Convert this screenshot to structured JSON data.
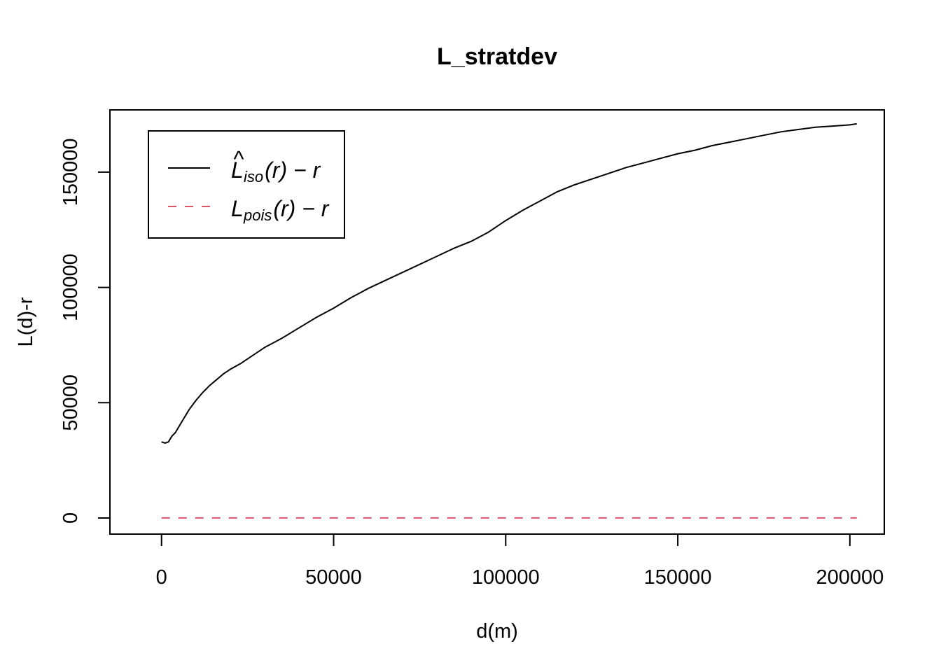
{
  "chart_data": {
    "type": "line",
    "title": "L_stratdev",
    "xlabel": "d(m)",
    "ylabel": "L(d)-r",
    "xlim": [
      -15000,
      210000
    ],
    "ylim": [
      -7000,
      177000
    ],
    "xticks": [
      0,
      50000,
      100000,
      150000,
      200000
    ],
    "yticks": [
      0,
      50000,
      100000,
      150000
    ],
    "xtick_labels": [
      "0",
      "50000",
      "100000",
      "150000",
      "200000"
    ],
    "ytick_labels": [
      "0",
      "50000",
      "100000",
      "150000"
    ],
    "grid": false,
    "legend_position": "top-left",
    "series": [
      {
        "name": "L̂iso(r) − r",
        "legend_main": "L",
        "legend_hat": "^",
        "legend_sub": "iso",
        "legend_rest": "(r) − r",
        "color": "#000000",
        "dash": "solid",
        "x": [
          0,
          1000,
          2000,
          3000,
          4000,
          5000,
          6000,
          8000,
          10000,
          12000,
          14000,
          16000,
          18000,
          20000,
          23000,
          26000,
          30000,
          35000,
          40000,
          45000,
          50000,
          55000,
          60000,
          65000,
          70000,
          75000,
          80000,
          85000,
          90000,
          95000,
          100000,
          105000,
          110000,
          115000,
          120000,
          125000,
          130000,
          135000,
          140000,
          145000,
          150000,
          155000,
          160000,
          165000,
          170000,
          175000,
          180000,
          185000,
          190000,
          195000,
          200000,
          202000
        ],
        "y": [
          33000,
          32500,
          33000,
          35500,
          37000,
          39500,
          42000,
          47000,
          51000,
          54500,
          57500,
          60000,
          62500,
          64500,
          67000,
          70000,
          74000,
          78000,
          82500,
          87000,
          91000,
          95500,
          99500,
          103000,
          106500,
          110000,
          113500,
          117000,
          120000,
          124000,
          129000,
          133500,
          137500,
          141500,
          144500,
          147000,
          149500,
          152000,
          154000,
          156000,
          158000,
          159500,
          161500,
          163000,
          164500,
          166000,
          167500,
          168500,
          169500,
          170000,
          170500,
          171000
        ]
      },
      {
        "name": "Lpois(r) − r",
        "legend_main": "L",
        "legend_hat": "",
        "legend_sub": "pois",
        "legend_rest": "(r) − r",
        "color": "#DF536B",
        "dash": "dashed",
        "x": [
          0,
          202000
        ],
        "y": [
          0,
          0
        ]
      }
    ]
  }
}
